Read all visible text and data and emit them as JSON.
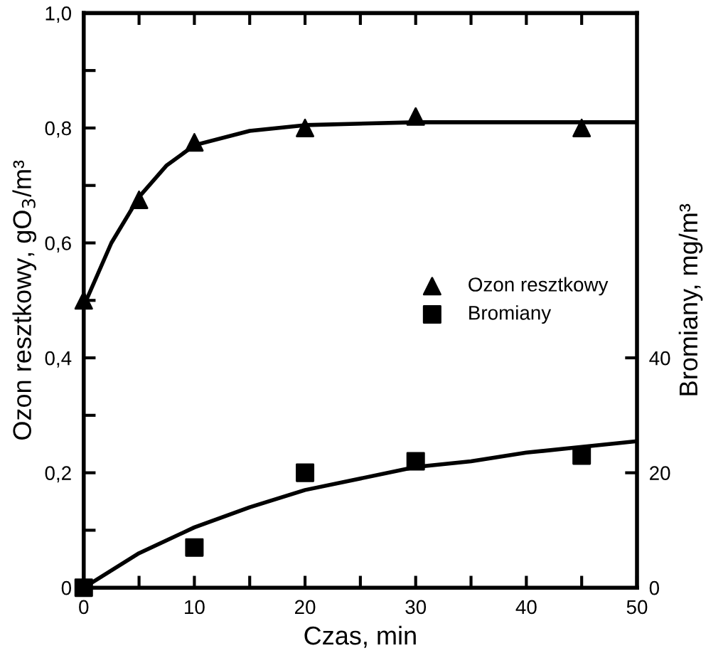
{
  "chart_data": {
    "type": "scatter",
    "xlabel": "Czas, min",
    "ylabel": "Ozon resztkowy, gO$_{3}$/m³",
    "y2label": "Bromiany, mg/m³",
    "xlim": [
      0,
      50
    ],
    "xticks": [
      0,
      {
        "value": 5,
        "label": null
      },
      10,
      {
        "value": 15,
        "label": null
      },
      20,
      {
        "value": 25,
        "label": null
      },
      30,
      {
        "value": 35,
        "label": null
      },
      40,
      {
        "value": 45,
        "label": null
      },
      50
    ],
    "ylim": [
      0,
      1.0
    ],
    "yticks": [
      0,
      {
        "value": 0.1,
        "label": null
      },
      {
        "value": 0.2,
        "label": "0,2"
      },
      {
        "value": 0.3,
        "label": null
      },
      {
        "value": 0.4,
        "label": "0,4"
      },
      {
        "value": 0.5,
        "label": null
      },
      {
        "value": 0.6,
        "label": "0,6"
      },
      {
        "value": 0.7,
        "label": null
      },
      {
        "value": 0.8,
        "label": "0,8"
      },
      {
        "value": 0.9,
        "label": null
      },
      {
        "value": 1.0,
        "label": "1,0"
      }
    ],
    "y2lim": [
      0,
      100
    ],
    "y2ticks": [
      0,
      20,
      40
    ],
    "legend": "right",
    "grid": false,
    "series": [
      {
        "name": "Ozon resztkowy",
        "marker": "triangle",
        "color": "#000000",
        "x": [
          0,
          5,
          10,
          20,
          30,
          45
        ],
        "values": [
          0.5,
          0.675,
          0.775,
          0.8,
          0.82,
          0.8
        ]
      },
      {
        "name": "Bromiany",
        "marker": "square",
        "axis": "y2",
        "color": "#000000",
        "x": [
          0,
          10,
          20,
          30,
          45
        ],
        "values": [
          0,
          7,
          20,
          22,
          23
        ]
      },
      {
        "type": "line",
        "color": "#000000",
        "line_style": "solid",
        "x": [
          0,
          2.5,
          5,
          7.5,
          10,
          15,
          20,
          30,
          40,
          50
        ],
        "values": [
          0.49,
          0.6,
          0.68,
          0.735,
          0.77,
          0.795,
          0.805,
          0.81,
          0.81,
          0.81
        ]
      },
      {
        "type": "line",
        "color": "#000000",
        "line_style": "solid",
        "axis": "y2",
        "x": [
          0,
          5,
          10,
          15,
          20,
          25,
          30,
          35,
          40,
          45,
          50
        ],
        "values": [
          0,
          6,
          10.5,
          14,
          17,
          19,
          21,
          22,
          23.5,
          24.5,
          25.5
        ]
      }
    ]
  }
}
